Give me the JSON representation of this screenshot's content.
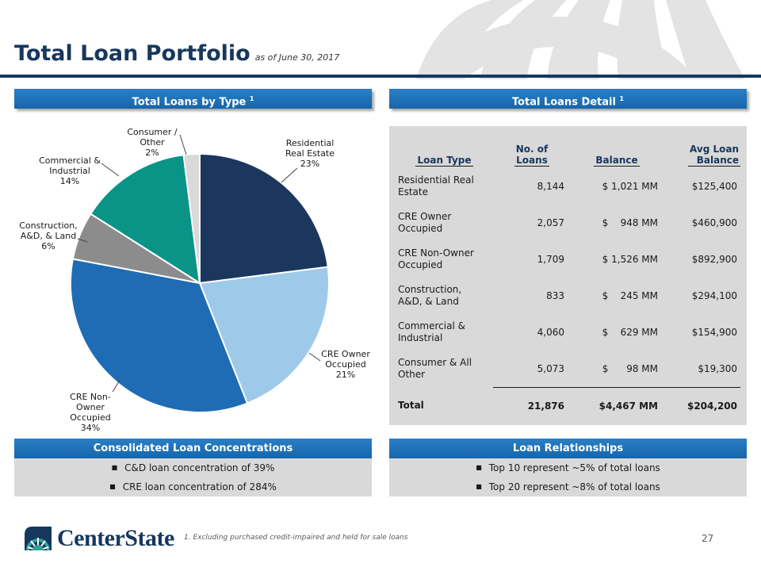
{
  "header": {
    "title": "Total Loan Portfolio",
    "subtitle": "as of June 30, 2017"
  },
  "pie_panel": {
    "title": "Total Loans by Type",
    "footnote_ref": "1"
  },
  "chart_data": {
    "type": "pie",
    "title": "Total Loans by Type",
    "slices": [
      {
        "label_lines": [
          "Residential",
          "Real Estate",
          "23%"
        ],
        "name": "Residential Real Estate",
        "value": 23,
        "color": "#1b375e"
      },
      {
        "label_lines": [
          "CRE Owner",
          "Occupied",
          "21%"
        ],
        "name": "CRE Owner Occupied",
        "value": 21,
        "color": "#9ecaea"
      },
      {
        "label_lines": [
          "CRE Non-",
          "Owner",
          "Occupied",
          "34%"
        ],
        "name": "CRE Non-Owner Occupied",
        "value": 34,
        "color": "#1f6cb4"
      },
      {
        "label_lines": [
          "Construction,",
          "A&D, & Land",
          "6%"
        ],
        "name": "Construction, A&D, & Land",
        "value": 6,
        "color": "#8c8c8c"
      },
      {
        "label_lines": [
          "Commercial &",
          "Industrial",
          "14%"
        ],
        "name": "Commercial & Industrial",
        "value": 14,
        "color": "#0a9488"
      },
      {
        "label_lines": [
          "Consumer /",
          "Other",
          "2%"
        ],
        "name": "Consumer / Other",
        "value": 2,
        "color": "#d9d9d9"
      }
    ]
  },
  "detail_panel": {
    "title": "Total Loans Detail",
    "footnote_ref": "1",
    "headers": {
      "type": "Loan Type",
      "count_1": "No. of",
      "count_2": "Loans",
      "balance": "Balance",
      "avg_1": "Avg Loan",
      "avg_2": "Balance"
    },
    "rows": [
      {
        "type_1": "Residential Real",
        "type_2": "Estate",
        "count": "8,144",
        "balance": "$ 1,021 MM",
        "avg": "$125,400"
      },
      {
        "type_1": "CRE Owner",
        "type_2": "Occupied",
        "count": "2,057",
        "balance": "$    948 MM",
        "avg": "$460,900"
      },
      {
        "type_1": "CRE Non-Owner",
        "type_2": "Occupied",
        "count": "1,709",
        "balance": "$ 1,526 MM",
        "avg": "$892,900"
      },
      {
        "type_1": "Construction,",
        "type_2": "A&D, & Land",
        "count": "833",
        "balance": "$    245 MM",
        "avg": "$294,100"
      },
      {
        "type_1": "Commercial &",
        "type_2": "Industrial",
        "count": "4,060",
        "balance": "$    629 MM",
        "avg": "$154,900"
      },
      {
        "type_1": "Consumer & All",
        "type_2": "Other",
        "count": "5,073",
        "balance": "$      98 MM",
        "avg": "$19,300"
      }
    ],
    "total": {
      "label": "Total",
      "count": "21,876",
      "balance": "$4,467 MM",
      "avg": "$204,200"
    }
  },
  "concentrations": {
    "title": "Consolidated Loan Concentrations",
    "items": [
      "C&D loan concentration of 39%",
      "CRE loan concentration of 284%"
    ]
  },
  "relationships": {
    "title": "Loan Relationships",
    "items": [
      "Top 10 represent ~5% of total loans",
      "Top 20 represent ~8% of total loans"
    ]
  },
  "footer": {
    "logo_text": "CenterState",
    "footnote": "1.  Excluding purchased credit-impaired and held for sale loans",
    "page_number": "27"
  },
  "colors": {
    "navy": "#17375e",
    "bar_blue": "#1f72b8",
    "panel_grey": "#d9d9d9"
  }
}
